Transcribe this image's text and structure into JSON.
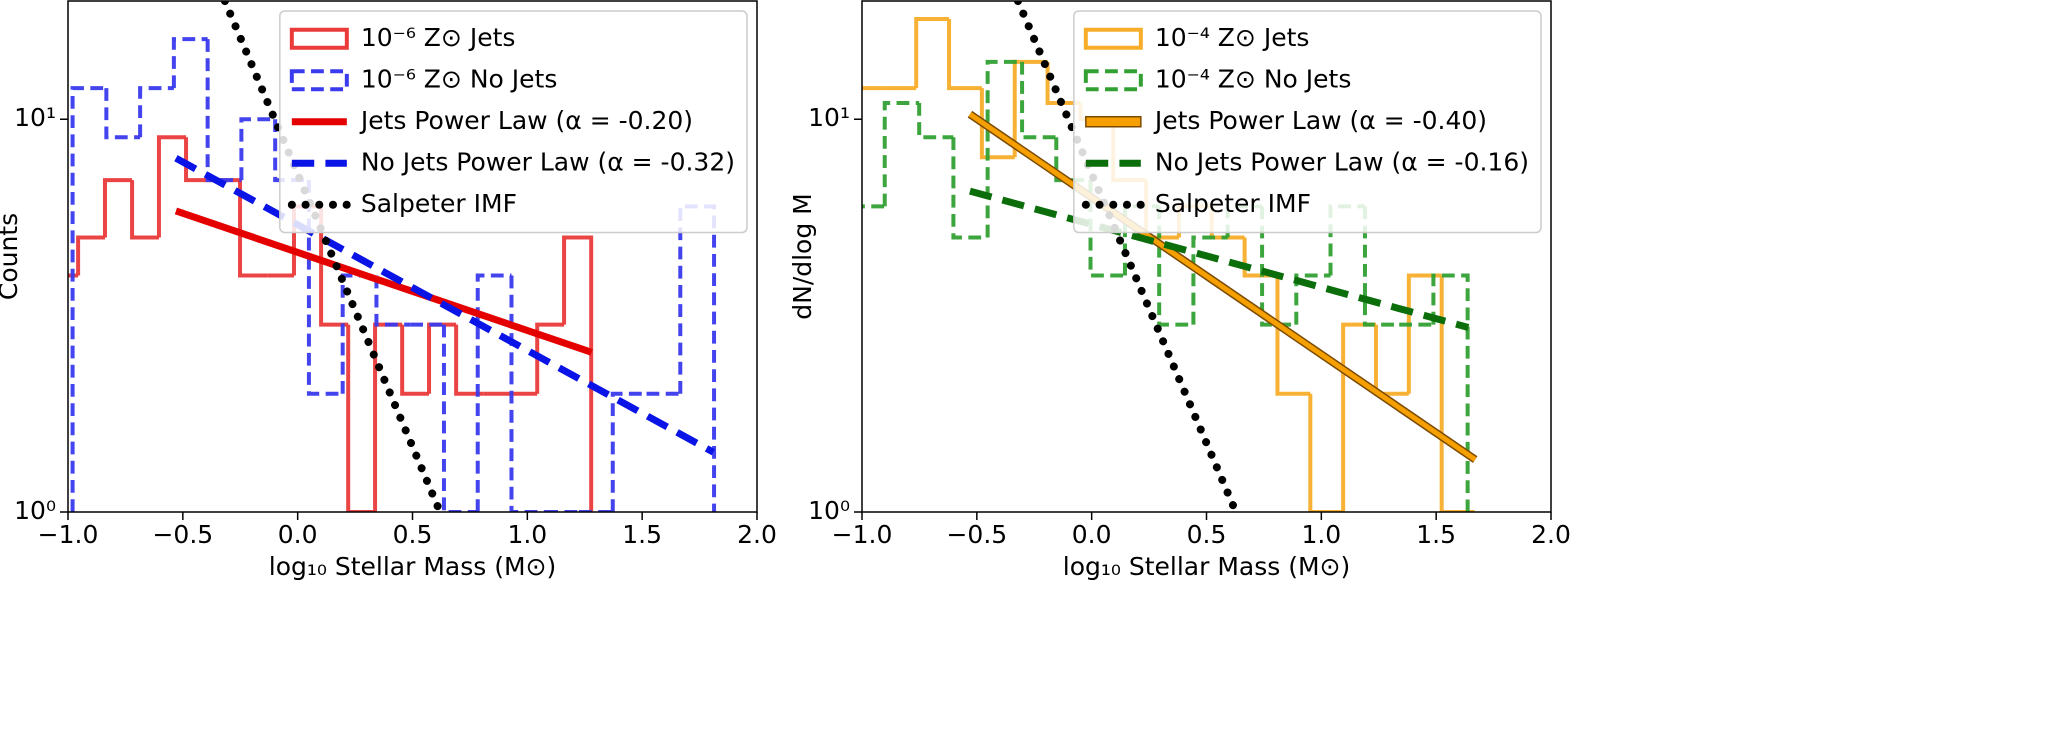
{
  "chart_data": [
    {
      "type": "histogram",
      "xlabel": "log₁₀ Stellar Mass (M⊙)",
      "ylabel": "Counts",
      "xlim": [
        -1.0,
        2.0
      ],
      "ylim": [
        1,
        20
      ],
      "yscale": "log",
      "legend": "upper right",
      "xticks": [
        {
          "value": -1.0,
          "label": "−1.0"
        },
        {
          "value": -0.5,
          "label": "−0.5"
        },
        {
          "value": 0.0,
          "label": "0.0"
        },
        {
          "value": 0.5,
          "label": "0.5"
        },
        {
          "value": 1.0,
          "label": "1.0"
        },
        {
          "value": 1.5,
          "label": "1.5"
        },
        {
          "value": 2.0,
          "label": "2.0"
        }
      ],
      "yticks": [
        {
          "value": 1,
          "label": "10⁰"
        },
        {
          "value": 10,
          "label": "10¹"
        }
      ],
      "series": [
        {
          "type": "hist",
          "name": "10⁻⁶ Z⊙ Jets",
          "color": "#ea3a3a",
          "linestyle": "solid",
          "bins": [
            -1.074,
            -0.956,
            -0.839,
            -0.721,
            -0.604,
            -0.486,
            -0.368,
            -0.251,
            -0.133,
            -0.016,
            0.102,
            0.22,
            0.337,
            0.455,
            0.572,
            0.69,
            0.808,
            0.925,
            1.043,
            1.16,
            1.278
          ],
          "values": [
            4,
            5,
            7,
            5,
            9,
            7,
            7,
            4,
            4,
            6,
            3,
            1,
            3,
            2,
            3,
            2,
            2,
            2,
            3,
            5
          ]
        },
        {
          "type": "hist",
          "name": "10⁻⁶ Z⊙ No Jets",
          "color": "#3a3aee",
          "linestyle": "dashed",
          "bins": [
            -0.98,
            -0.833,
            -0.686,
            -0.539,
            -0.392,
            -0.245,
            -0.098,
            0.049,
            0.196,
            0.343,
            0.49,
            0.637,
            0.784,
            0.931,
            1.078,
            1.225,
            1.372,
            1.519,
            1.666,
            1.813
          ],
          "values": [
            12,
            9,
            12,
            16,
            7,
            10,
            7,
            2,
            4,
            3,
            3,
            1,
            4,
            1,
            1,
            1,
            2,
            2,
            6
          ]
        },
        {
          "type": "line",
          "name": "Jets Power Law (α = -0.20)",
          "color": "#e50000",
          "linestyle": "solid",
          "x": [
            -0.53,
            1.28
          ],
          "values": [
            5.84,
            2.55
          ]
        },
        {
          "type": "line",
          "name": "No Jets Power Law (α = -0.32)",
          "color": "#0a14e6",
          "linestyle": "dashed",
          "x": [
            -0.53,
            1.81
          ],
          "values": [
            7.96,
            1.42
          ]
        },
        {
          "type": "line",
          "name": "Salpeter IMF",
          "color": "#000000",
          "linestyle": "dotted",
          "x": [
            -0.317,
            0.62
          ],
          "values": [
            20,
            1
          ]
        }
      ]
    },
    {
      "type": "histogram",
      "xlabel": "log₁₀ Stellar Mass (M⊙)",
      "ylabel": "dN/dlog M",
      "xlim": [
        -1.0,
        2.0
      ],
      "ylim": [
        1,
        20
      ],
      "yscale": "log",
      "legend": "upper right",
      "xticks": [
        {
          "value": -1.0,
          "label": "−1.0"
        },
        {
          "value": -0.5,
          "label": "−0.5"
        },
        {
          "value": 0.0,
          "label": "0.0"
        },
        {
          "value": 0.5,
          "label": "0.5"
        },
        {
          "value": 1.0,
          "label": "1.0"
        },
        {
          "value": 1.5,
          "label": "1.5"
        },
        {
          "value": 2.0,
          "label": "2.0"
        }
      ],
      "yticks": [
        {
          "value": 1,
          "label": "10⁰"
        },
        {
          "value": 10,
          "label": "10¹"
        }
      ],
      "series": [
        {
          "type": "hist",
          "name": "10⁻⁴ Z⊙ Jets",
          "color": "#f7ad2a",
          "linestyle": "solid",
          "bins": [
            -1.05,
            -0.907,
            -0.764,
            -0.621,
            -0.478,
            -0.335,
            -0.192,
            -0.049,
            0.094,
            0.237,
            0.38,
            0.523,
            0.666,
            0.809,
            0.952,
            1.095,
            1.238,
            1.381,
            1.524,
            1.667
          ],
          "values": [
            12,
            12,
            18,
            12,
            8,
            14,
            11,
            10,
            7,
            5,
            6,
            5,
            4,
            2,
            1,
            3,
            2,
            4,
            1
          ]
        },
        {
          "type": "hist",
          "name": "10⁻⁴ Z⊙ No Jets",
          "color": "#33a033",
          "linestyle": "dashed",
          "bins": [
            -1.05,
            -0.901,
            -0.751,
            -0.602,
            -0.453,
            -0.303,
            -0.154,
            -0.005,
            0.145,
            0.294,
            0.443,
            0.592,
            0.742,
            0.891,
            1.04,
            1.19,
            1.339,
            1.488,
            1.637
          ],
          "values": [
            6,
            11,
            9,
            5,
            14,
            9,
            7,
            4,
            6,
            3,
            5,
            6,
            3,
            4,
            6,
            3,
            3,
            4
          ]
        },
        {
          "type": "line",
          "name": "Jets Power Law (α = -0.40)",
          "color": "#f5a000",
          "linestyle": "outlined",
          "x": [
            -0.53,
            1.67
          ],
          "values": [
            10.3,
            1.36
          ]
        },
        {
          "type": "line",
          "name": "No Jets Power Law (α = -0.16)",
          "color": "#0b6e0b",
          "linestyle": "dashed",
          "x": [
            -0.53,
            1.64
          ],
          "values": [
            6.56,
            2.95
          ]
        },
        {
          "type": "line",
          "name": "Salpeter IMF",
          "color": "#000000",
          "linestyle": "dotted",
          "x": [
            -0.321,
            0.628
          ],
          "values": [
            20,
            1
          ]
        }
      ]
    }
  ]
}
